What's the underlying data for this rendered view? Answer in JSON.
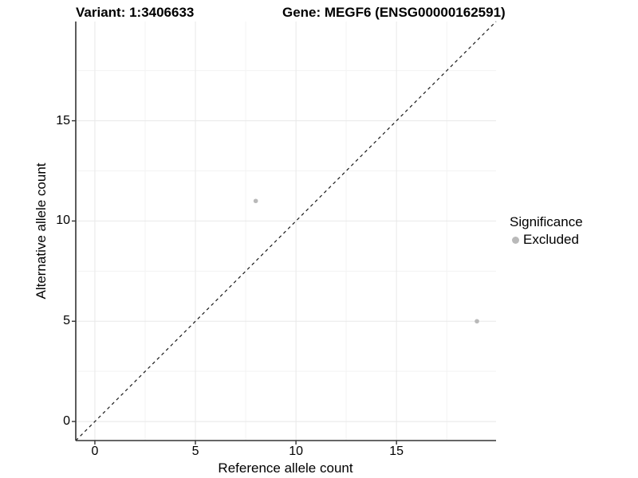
{
  "chart_data": {
    "type": "scatter",
    "title_left": "Variant: 1:3406633",
    "title_right": "Gene: MEGF6 (ENSG00000162591)",
    "xlabel": "Reference allele count",
    "ylabel": "Alternative allele count",
    "xlim": [
      -0.95,
      19.95
    ],
    "ylim": [
      -0.95,
      19.95
    ],
    "x_ticks": [
      0,
      5,
      10,
      15
    ],
    "y_ticks": [
      0,
      5,
      10,
      15
    ],
    "x_minor_ticks": [
      2.5,
      7.5,
      12.5,
      17.5
    ],
    "y_minor_ticks": [
      2.5,
      7.5,
      12.5,
      17.5
    ],
    "grid": true,
    "identity_line": {
      "slope": 1,
      "intercept": 0,
      "style": "dashed",
      "color": "#1a1a1a"
    },
    "series": [
      {
        "name": "Excluded",
        "color": "#b9b9b9",
        "points": [
          {
            "x": 8,
            "y": 11
          },
          {
            "x": 19,
            "y": 5
          }
        ]
      }
    ],
    "legend": {
      "title": "Significance",
      "position": "right",
      "entries": [
        {
          "label": "Excluded",
          "color": "#b9b9b9"
        }
      ]
    },
    "colors": {
      "background": "#ffffff",
      "grid_major": "#e8e8e8",
      "grid_minor": "#f3f3f3",
      "axis_line": "#333333",
      "tick_mark": "#333333",
      "text": "#000000"
    }
  }
}
